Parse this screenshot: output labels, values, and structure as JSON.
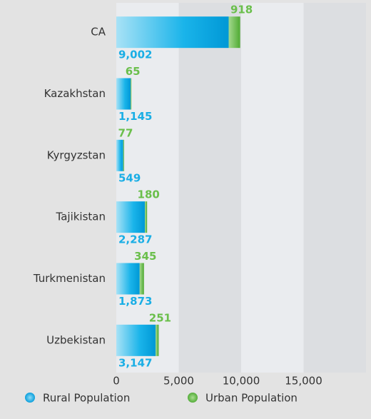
{
  "chart_data": {
    "type": "stacked-bar-horizontal",
    "categories": [
      "CA",
      "Kazakhstan",
      "Kyrgyzstan",
      "Tajikistan",
      "Turkmenistan",
      "Uzbekistan"
    ],
    "series": [
      {
        "name": "Rural Population",
        "color": "#1aaee5",
        "values": [
          9002,
          1145,
          549,
          2287,
          1873,
          3147
        ],
        "value_labels": [
          "9,002",
          "1,145",
          "549",
          "2,287",
          "1,873",
          "3,147"
        ]
      },
      {
        "name": "Urban Population",
        "color": "#6abf4b",
        "values": [
          918,
          65,
          77,
          180,
          345,
          251
        ]
      }
    ],
    "xlim": [
      0,
      20000
    ],
    "xticks": [
      0,
      {
        "value": 5000,
        "label": "5,000"
      },
      {
        "value": 10000,
        "label": "10,000"
      },
      {
        "value": 15000,
        "label": "15,000"
      }
    ],
    "grid": true
  }
}
